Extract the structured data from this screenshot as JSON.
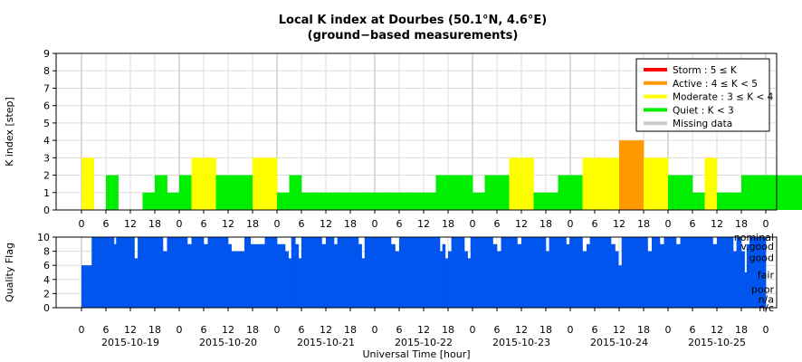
{
  "chart_data": [
    {
      "type": "bar",
      "title": "Local K index at Dourbes (50.1°N, 4.6°E)",
      "subtitle": "(ground−based measurements)",
      "ylabel": "K index [step]",
      "ylim": [
        0,
        9
      ],
      "yticks": [
        0,
        1,
        2,
        3,
        4,
        5,
        6,
        7,
        8,
        9
      ],
      "grid": true,
      "legend_position": "top-right",
      "x_unit": "hours",
      "x_range": [
        0,
        168
      ],
      "bar_width_hours": 3,
      "bar_groups": [
        [
          0,
          1,
          3
        ],
        [
          2,
          1,
          2
        ],
        [
          5,
          1,
          1
        ],
        [
          6,
          1,
          2
        ],
        [
          7,
          1,
          1
        ],
        [
          8,
          1,
          2
        ],
        [
          9,
          2,
          3
        ],
        [
          11,
          3,
          2
        ],
        [
          14,
          2,
          3
        ],
        [
          16,
          1,
          1
        ],
        [
          17,
          1,
          2
        ],
        [
          18,
          7,
          1
        ],
        [
          25,
          4,
          1
        ],
        [
          29,
          3,
          2
        ],
        [
          32,
          1,
          1
        ],
        [
          33,
          2,
          2
        ],
        [
          35,
          2,
          3
        ],
        [
          37,
          2,
          1
        ],
        [
          39,
          2,
          2
        ],
        [
          41,
          3,
          3
        ],
        [
          44,
          2,
          4
        ],
        [
          46,
          2,
          3
        ],
        [
          48,
          2,
          2
        ],
        [
          50,
          1,
          1
        ],
        [
          51,
          1,
          3
        ],
        [
          52,
          2,
          1
        ],
        [
          54,
          5,
          2
        ],
        [
          59,
          1,
          3
        ],
        [
          60,
          2,
          4
        ],
        [
          62,
          3,
          3
        ],
        [
          65,
          6,
          2
        ],
        [
          71,
          2,
          3
        ],
        [
          73,
          1,
          2
        ],
        [
          74,
          2,
          1
        ],
        [
          76,
          7,
          2
        ],
        [
          83,
          7,
          1
        ],
        [
          90,
          5,
          2
        ],
        [
          95,
          2,
          3
        ],
        [
          97,
          1,
          2
        ],
        [
          98,
          3,
          2
        ],
        [
          101,
          2,
          1
        ],
        [
          103,
          4,
          3
        ],
        [
          107,
          2,
          2
        ],
        [
          109,
          3,
          1
        ],
        [
          112,
          7,
          2
        ],
        [
          119,
          2,
          1
        ],
        [
          121,
          2,
          2
        ],
        [
          123,
          2,
          3
        ],
        [
          125,
          2,
          2
        ],
        [
          127,
          2,
          2
        ],
        [
          129,
          2,
          1
        ],
        [
          131,
          2,
          3
        ],
        [
          133,
          6,
          3
        ],
        [
          139,
          3,
          2
        ],
        [
          142,
          3,
          1
        ],
        [
          145,
          2,
          2
        ],
        [
          147,
          2,
          3
        ],
        [
          149,
          4,
          2
        ],
        [
          153,
          4,
          3
        ],
        [
          157,
          2,
          1
        ],
        [
          159,
          2,
          2
        ],
        [
          161,
          2,
          1
        ],
        [
          163,
          3,
          2
        ]
      ],
      "k_categories": [
        {
          "name": "Storm : 5 ≤ K",
          "color": "#ff0000",
          "k_min": 5,
          "k_max": 9
        },
        {
          "name": "Active : 4 ≤ K < 5",
          "color": "#ff9900",
          "k_min": 4,
          "k_max": 4
        },
        {
          "name": "Moderate : 3 ≤ K < 4",
          "color": "#ffff00",
          "k_min": 3,
          "k_max": 3
        },
        {
          "name": "Quiet : K < 3",
          "color": "#00ee00",
          "k_min": 0,
          "k_max": 2
        },
        {
          "name": "Missing data",
          "color": "#cccccc",
          "k_min": null,
          "k_max": null
        }
      ]
    },
    {
      "type": "bar",
      "ylabel": "Quality Flag",
      "xlabel": "Universal Time [hour]",
      "ylim": [
        0,
        10
      ],
      "yticks": [
        0,
        2,
        4,
        6,
        8,
        10
      ],
      "grid": true,
      "color": "#0055ee",
      "quality_labels": [
        {
          "name": "nominal",
          "value": 10
        },
        {
          "name": "v.good",
          "value": 8.7
        },
        {
          "name": "good",
          "value": 7.1
        },
        {
          "name": "fair",
          "value": 4.7
        },
        {
          "name": "poor",
          "value": 2.6
        },
        {
          "name": "n/a",
          "value": 1.2
        },
        {
          "name": "n/c",
          "value": 0
        }
      ],
      "x_tick_hours": [
        "0",
        "6",
        "12",
        "18",
        "0",
        "6",
        "12",
        "18",
        "0",
        "6",
        "12",
        "18",
        "0",
        "6",
        "12",
        "18",
        "0",
        "6",
        "12",
        "18",
        "0",
        "6",
        "12",
        "18",
        "0",
        "6",
        "12",
        "18",
        "0"
      ],
      "date_labels": [
        "2015-10-19",
        "2015-10-20",
        "2015-10-21",
        "2015-10-22",
        "2015-10-23",
        "2015-10-24",
        "2015-10-25"
      ],
      "quality_segments": [
        [
          0,
          2.5,
          6
        ],
        [
          2.5,
          8,
          10
        ],
        [
          8,
          8.5,
          9
        ],
        [
          8.5,
          13,
          10
        ],
        [
          13,
          13.8,
          7
        ],
        [
          13.8,
          20,
          10
        ],
        [
          20,
          21,
          8
        ],
        [
          21,
          26,
          10
        ],
        [
          26,
          27,
          9
        ],
        [
          27,
          30,
          10
        ],
        [
          30,
          31,
          9
        ],
        [
          31,
          36,
          10
        ],
        [
          36,
          36.8,
          9
        ],
        [
          36.8,
          40,
          8
        ],
        [
          40,
          41.5,
          10
        ],
        [
          41.5,
          45,
          9
        ],
        [
          45,
          48,
          10
        ],
        [
          48,
          50,
          9
        ],
        [
          50,
          50.8,
          8
        ],
        [
          50.8,
          51.5,
          7
        ],
        [
          51.5,
          52.5,
          10
        ],
        [
          52.5,
          53.3,
          9
        ],
        [
          53.3,
          54,
          7
        ],
        [
          54,
          59,
          10
        ],
        [
          59,
          60,
          9
        ],
        [
          60,
          62,
          10
        ],
        [
          62,
          62.8,
          9
        ],
        [
          62.8,
          68,
          10
        ],
        [
          68,
          68.8,
          9
        ],
        [
          68.8,
          69.5,
          7
        ],
        [
          69.5,
          76,
          10
        ],
        [
          76,
          77,
          9
        ],
        [
          77,
          78,
          8
        ],
        [
          78,
          88,
          10
        ],
        [
          88,
          88.6,
          8
        ],
        [
          88.6,
          89.3,
          9
        ],
        [
          89.3,
          90,
          7
        ],
        [
          90,
          90.8,
          8
        ],
        [
          90.8,
          94,
          10
        ],
        [
          94,
          94.8,
          8
        ],
        [
          94.8,
          95.5,
          7
        ],
        [
          95.5,
          101,
          10
        ],
        [
          101,
          102,
          9
        ],
        [
          102,
          103,
          8
        ],
        [
          103,
          107,
          10
        ],
        [
          107,
          108,
          9
        ],
        [
          108,
          114,
          10
        ],
        [
          114,
          114.8,
          8
        ],
        [
          114.8,
          119,
          10
        ],
        [
          119,
          119.8,
          9
        ],
        [
          119.8,
          123,
          10
        ],
        [
          123,
          124,
          8
        ],
        [
          124,
          124.8,
          9
        ],
        [
          124.8,
          130,
          10
        ],
        [
          130,
          131,
          9
        ],
        [
          131,
          131.8,
          8
        ],
        [
          131.8,
          132.6,
          6
        ],
        [
          132.6,
          139,
          10
        ],
        [
          139,
          140,
          8
        ],
        [
          140,
          142,
          10
        ],
        [
          142,
          143,
          9
        ],
        [
          143,
          146,
          10
        ],
        [
          146,
          147,
          9
        ],
        [
          147,
          155,
          10
        ],
        [
          155,
          156,
          9
        ],
        [
          156,
          160,
          10
        ],
        [
          160,
          160.8,
          8
        ],
        [
          160.8,
          162,
          10
        ],
        [
          162,
          162.8,
          8
        ],
        [
          162.8,
          163.3,
          5
        ],
        [
          163.3,
          164,
          9
        ],
        [
          164,
          168,
          10
        ]
      ]
    }
  ]
}
